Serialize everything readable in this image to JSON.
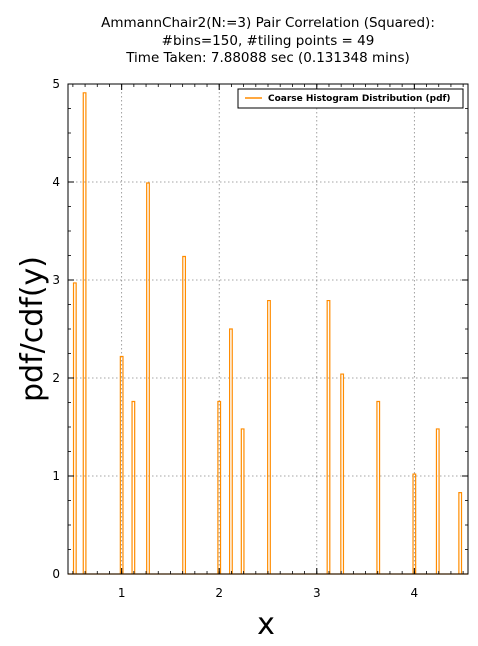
{
  "chart_data": {
    "type": "bar",
    "title": [
      "AmmannChair2(N:=3) Pair Correlation (Squared):",
      "#bins=150, #tiling points = 49",
      "Time Taken: 7.88088 sec (0.131348 mins)"
    ],
    "xlabel": "x",
    "ylabel": "pdf/cdf(y)",
    "xlim": [
      0.45,
      4.55
    ],
    "ylim": [
      0,
      5
    ],
    "xticks": [
      1,
      2,
      3,
      4
    ],
    "yticks": [
      0,
      1,
      2,
      3,
      4,
      5
    ],
    "grid": true,
    "legend_position": "top-right",
    "series": [
      {
        "name": "Coarse Histogram Distribution (pdf)",
        "color": "#ff8c00",
        "bin_width": 0.027,
        "x": [
          0.52,
          0.62,
          1.0,
          1.12,
          1.27,
          1.64,
          2.0,
          2.12,
          2.24,
          2.51,
          3.12,
          3.26,
          3.63,
          4.0,
          4.24,
          4.47
        ],
        "values": [
          2.97,
          4.91,
          2.22,
          1.76,
          3.99,
          3.24,
          1.76,
          2.5,
          1.48,
          2.79,
          2.79,
          2.04,
          1.76,
          1.02,
          1.48,
          0.83
        ]
      }
    ]
  }
}
